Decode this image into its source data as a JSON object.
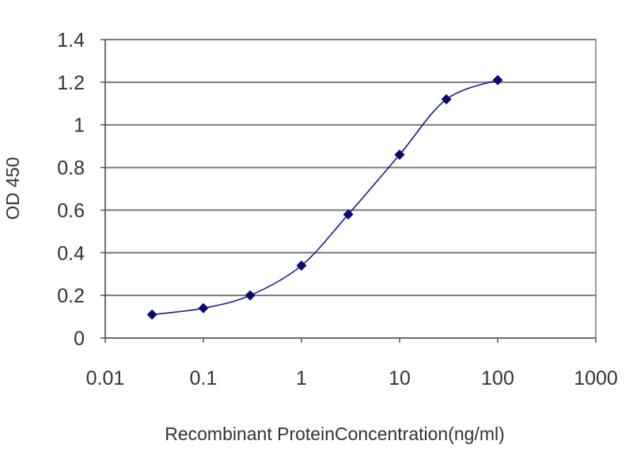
{
  "chart_data": {
    "type": "scatter",
    "xlabel": "Recombinant ProteinConcentration(ng/ml)",
    "ylabel": "OD 450",
    "xscale": "log",
    "xlim": [
      0.01,
      1000
    ],
    "ylim": [
      0,
      1.4
    ],
    "x_ticks": [
      0.01,
      0.1,
      1,
      10,
      100,
      1000
    ],
    "x_tick_labels": [
      "0.01",
      "0.1",
      "1",
      "10",
      "100",
      "1000"
    ],
    "y_ticks": [
      0,
      0.2,
      0.4,
      0.6,
      0.8,
      1,
      1.2,
      1.4
    ],
    "y_tick_labels": [
      "0",
      "0.2",
      "0.4",
      "0.6",
      "0.8",
      "1",
      "1.2",
      "1.4"
    ],
    "grid": "horizontal",
    "legend": "none",
    "series": [
      {
        "x": [
          0.03,
          0.1,
          0.3,
          1,
          3,
          10,
          30,
          100
        ],
        "y": [
          0.11,
          0.14,
          0.2,
          0.34,
          0.58,
          0.86,
          1.12,
          1.21
        ]
      }
    ],
    "colors": {
      "series": "#1a1a8c",
      "marker": "#0a0a6e",
      "grid": "#7a7a7a",
      "axis": "#555555"
    }
  }
}
